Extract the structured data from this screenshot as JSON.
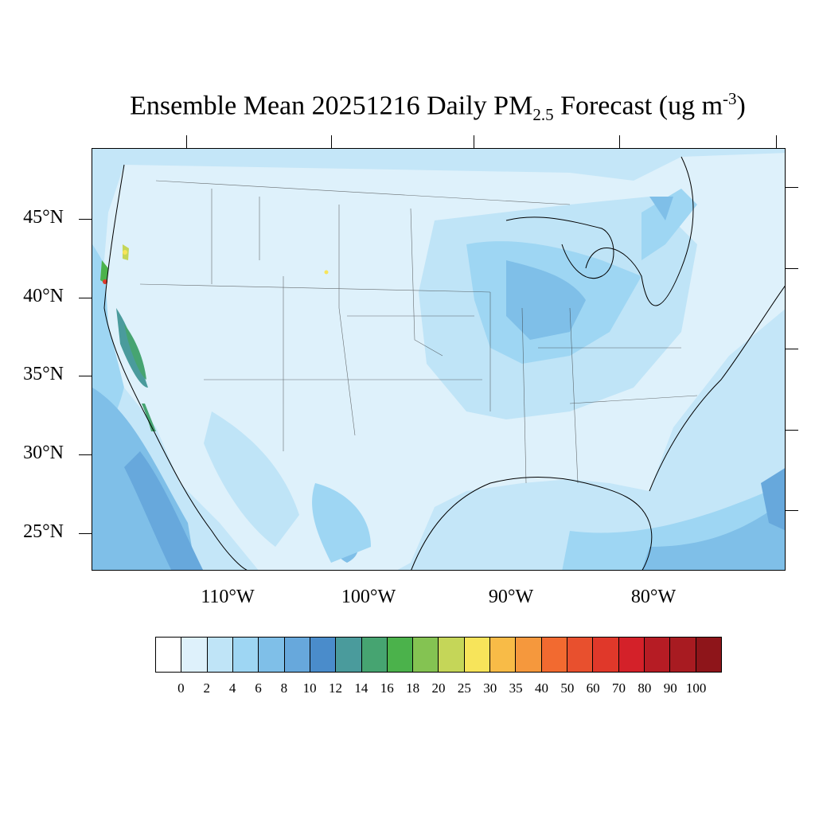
{
  "title": {
    "main": "Ensemble Mean 20251216 Daily PM",
    "sub": "2.5",
    "after": " Forecast (ug m",
    "sup": "-3",
    "close": ")"
  },
  "map": {
    "background_color": "#c4e6f8",
    "lat_labels": [
      "45°N",
      "40°N",
      "35°N",
      "30°N",
      "25°N"
    ],
    "lon_labels": [
      "110°W",
      "100°W",
      "90°W",
      "80°W"
    ]
  },
  "colorbar": {
    "colors": [
      "#ffffff",
      "#def1fb",
      "#bfe4f7",
      "#9ed6f3",
      "#7fbfe8",
      "#67a8dc",
      "#4a8ccb",
      "#4a9b9c",
      "#46a471",
      "#4bb24b",
      "#84c352",
      "#c5d658",
      "#f7e45a",
      "#f8bb47",
      "#f5983d",
      "#f26a30",
      "#e8502e",
      "#e0382a",
      "#d42129",
      "#b61c24",
      "#a81b21",
      "#8e151a"
    ],
    "labels": [
      "0",
      "2",
      "4",
      "6",
      "8",
      "10",
      "12",
      "14",
      "16",
      "18",
      "20",
      "25",
      "30",
      "35",
      "40",
      "50",
      "60",
      "70",
      "80",
      "90",
      "100"
    ]
  }
}
